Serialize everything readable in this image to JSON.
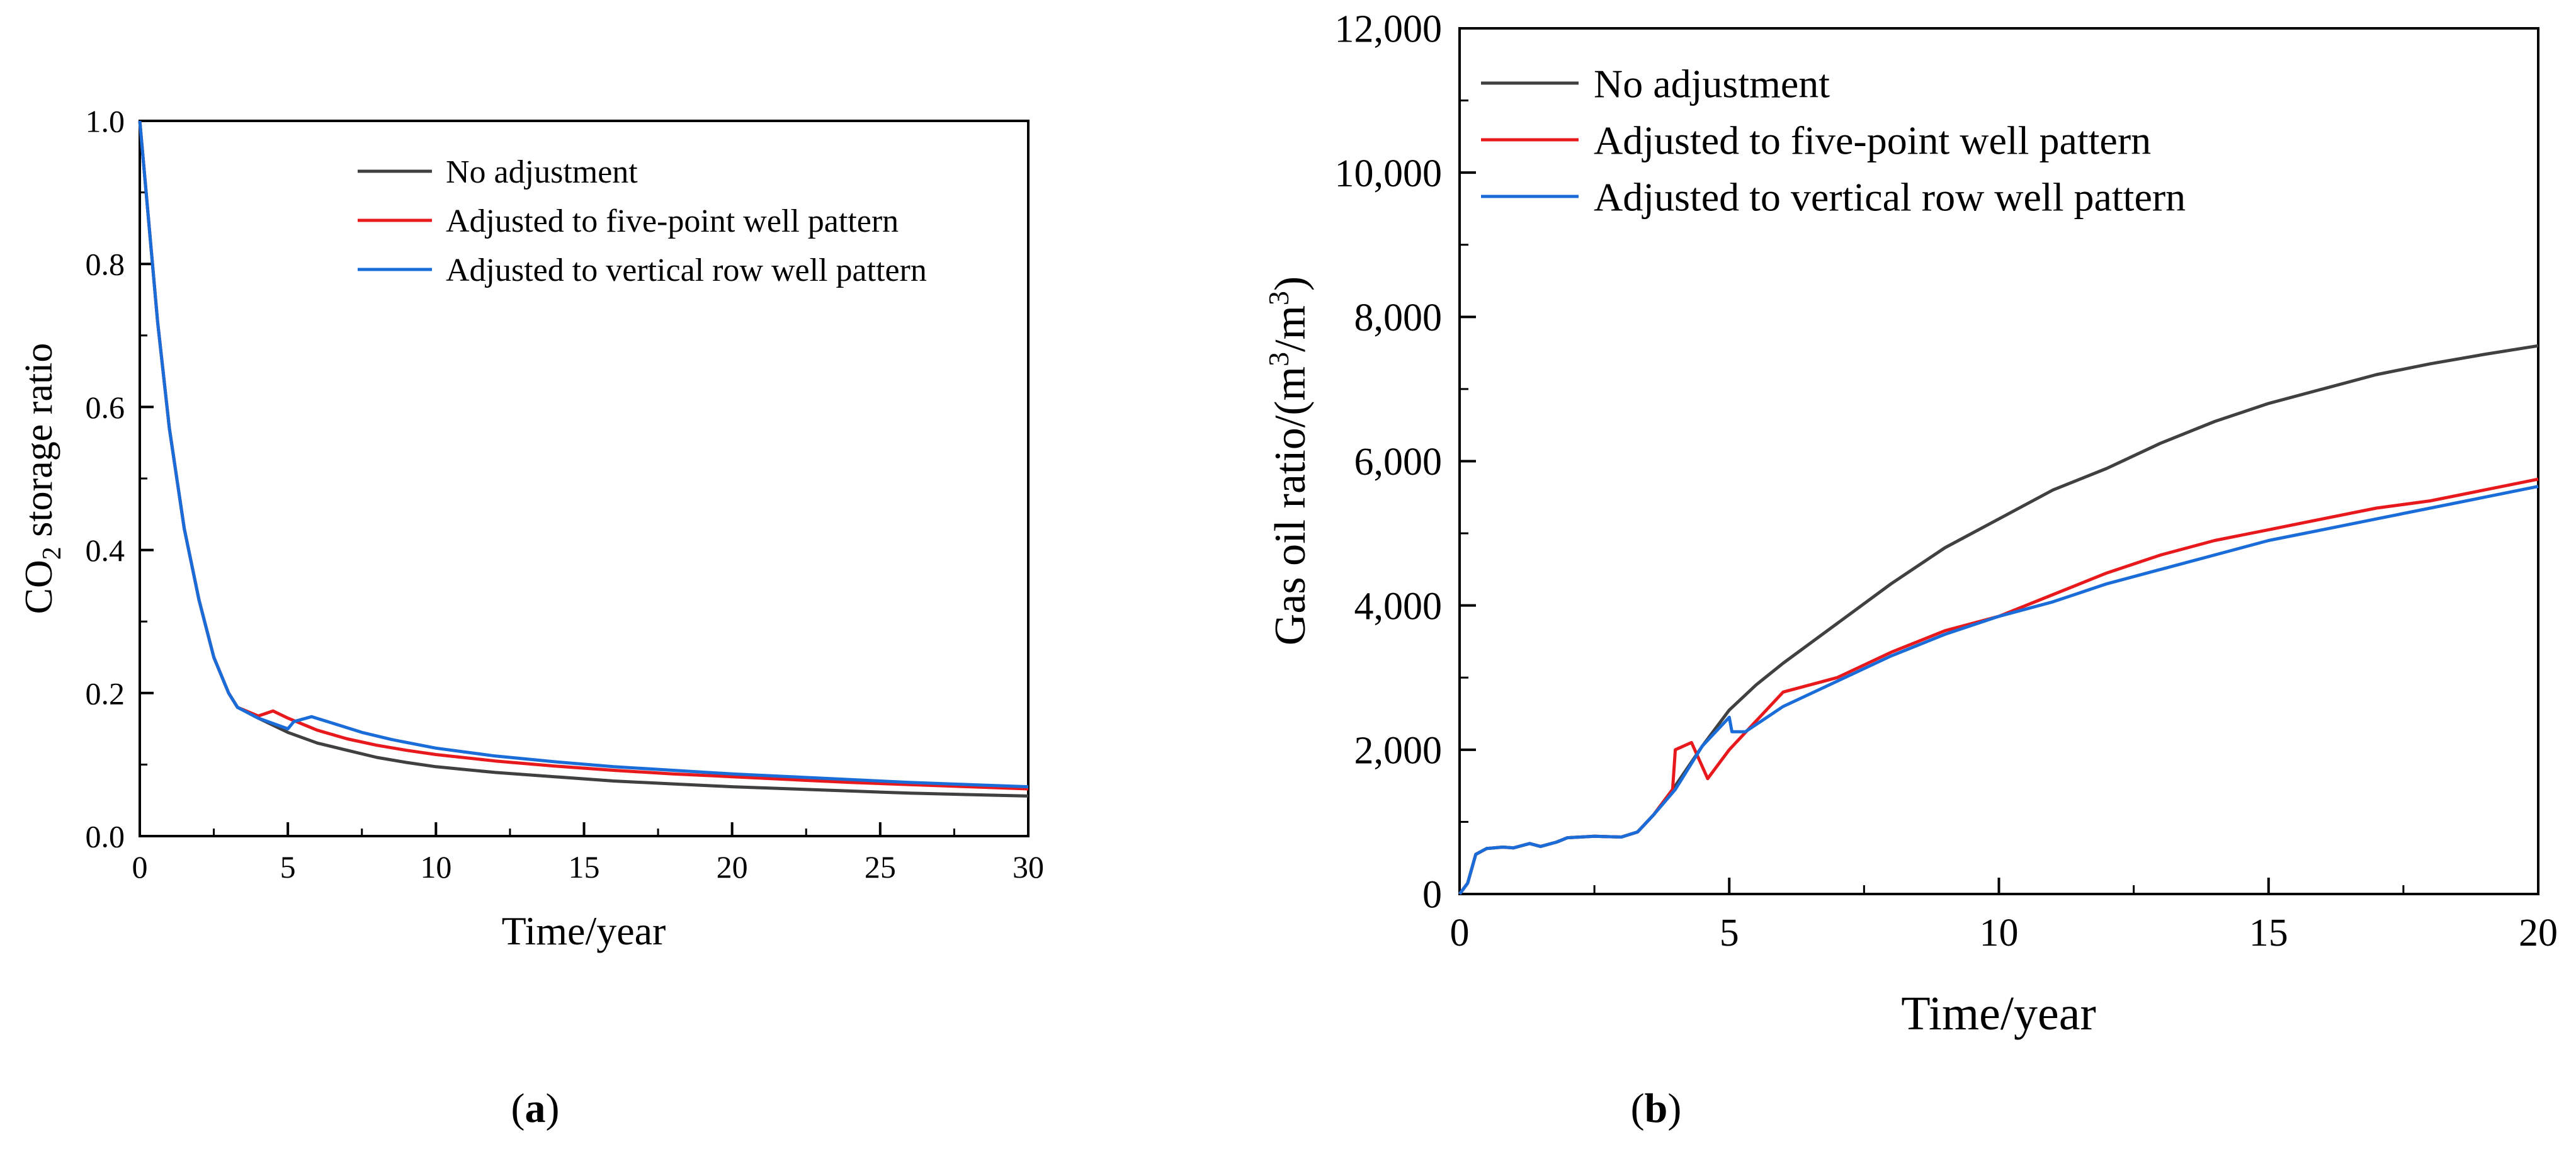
{
  "chart_data": [
    {
      "type": "line",
      "panel_label": "(a)",
      "panel_letter": "a",
      "xlabel": "Time/year",
      "ylabel_main": "CO",
      "ylabel_sub": "2",
      "ylabel_rest": " storage ratio",
      "xlim": [
        0,
        30
      ],
      "ylim": [
        0,
        1.0
      ],
      "xticks": [
        "0",
        "5",
        "10",
        "15",
        "20",
        "25",
        "30"
      ],
      "yticks": [
        "0.0",
        "0.2",
        "0.4",
        "0.6",
        "0.8",
        "1.0"
      ],
      "legend_position": "top-right",
      "series": [
        {
          "name": "No adjustment",
          "color": "#404040",
          "x": [
            0,
            0.3,
            0.6,
            1.0,
            1.5,
            2.0,
            2.5,
            3.0,
            3.3,
            4.0,
            5.0,
            6.0,
            7.0,
            8.0,
            9.0,
            10.0,
            11.0,
            12.0,
            14.0,
            16.0,
            18.0,
            20.0,
            22.0,
            24.0,
            26.0,
            28.0,
            30.0
          ],
          "y": [
            1.0,
            0.86,
            0.72,
            0.57,
            0.43,
            0.33,
            0.25,
            0.2,
            0.18,
            0.165,
            0.145,
            0.13,
            0.12,
            0.11,
            0.103,
            0.097,
            0.093,
            0.089,
            0.083,
            0.077,
            0.073,
            0.069,
            0.066,
            0.063,
            0.06,
            0.058,
            0.056
          ]
        },
        {
          "name": "Adjusted to five-point well pattern",
          "color": "#e8191c",
          "x": [
            0,
            0.3,
            0.6,
            1.0,
            1.5,
            2.0,
            2.5,
            3.0,
            3.3,
            4.0,
            4.5,
            5.0,
            6.0,
            7.0,
            8.0,
            9.0,
            10.0,
            12.0,
            14.0,
            16.0,
            18.0,
            20.0,
            22.0,
            24.0,
            26.0,
            28.0,
            30.0
          ],
          "y": [
            1.0,
            0.86,
            0.72,
            0.57,
            0.43,
            0.33,
            0.25,
            0.2,
            0.18,
            0.168,
            0.175,
            0.165,
            0.148,
            0.136,
            0.127,
            0.12,
            0.114,
            0.105,
            0.098,
            0.092,
            0.087,
            0.083,
            0.079,
            0.075,
            0.072,
            0.069,
            0.066
          ]
        },
        {
          "name": "Adjusted to vertical row well pattern",
          "color": "#1a6dd8",
          "x": [
            0,
            0.3,
            0.6,
            1.0,
            1.5,
            2.0,
            2.5,
            3.0,
            3.3,
            4.0,
            5.0,
            5.2,
            5.8,
            6.5,
            7.5,
            8.5,
            10.0,
            12.0,
            14.0,
            16.0,
            18.0,
            20.0,
            22.0,
            24.0,
            26.0,
            28.0,
            30.0
          ],
          "y": [
            1.0,
            0.86,
            0.72,
            0.57,
            0.43,
            0.33,
            0.25,
            0.2,
            0.18,
            0.165,
            0.15,
            0.16,
            0.167,
            0.158,
            0.145,
            0.135,
            0.123,
            0.112,
            0.104,
            0.097,
            0.092,
            0.087,
            0.083,
            0.079,
            0.075,
            0.072,
            0.069
          ]
        }
      ]
    },
    {
      "type": "line",
      "panel_label": "(b)",
      "panel_letter": "b",
      "xlabel": "Time/year",
      "ylabel_main": "Gas oil ratio/(m",
      "ylabel_sup1": "3",
      "ylabel_mid": "/m",
      "ylabel_sup2": "3",
      "ylabel_end": ")",
      "xlim": [
        0,
        20
      ],
      "ylim": [
        0,
        12000
      ],
      "xticks": [
        "0",
        "5",
        "10",
        "15",
        "20"
      ],
      "yticks": [
        "0",
        "2,000",
        "4,000",
        "6,000",
        "8,000",
        "10,000",
        "12,000"
      ],
      "legend_position": "top-left",
      "series": [
        {
          "name": "No adjustment",
          "color": "#404040",
          "x": [
            0,
            0.15,
            0.3,
            0.5,
            0.8,
            1.0,
            1.3,
            1.5,
            1.8,
            2.0,
            2.5,
            3.0,
            3.3,
            3.6,
            4.0,
            4.5,
            5.0,
            5.5,
            6.0,
            7.0,
            8.0,
            9.0,
            10.0,
            11.0,
            12.0,
            13.0,
            14.0,
            15.0,
            16.0,
            17.0,
            18.0,
            19.0,
            20.0
          ],
          "y": [
            0,
            150,
            550,
            630,
            650,
            640,
            700,
            660,
            720,
            780,
            800,
            790,
            860,
            1100,
            1500,
            2050,
            2550,
            2900,
            3200,
            3750,
            4300,
            4800,
            5200,
            5600,
            5900,
            6250,
            6550,
            6800,
            7000,
            7200,
            7350,
            7480,
            7600
          ]
        },
        {
          "name": "Adjusted to five-point well pattern",
          "color": "#e8191c",
          "x": [
            0,
            0.15,
            0.3,
            0.5,
            0.8,
            1.0,
            1.3,
            1.5,
            1.8,
            2.0,
            2.5,
            3.0,
            3.3,
            3.6,
            3.95,
            4.0,
            4.3,
            4.6,
            5.0,
            5.5,
            6.0,
            7.0,
            8.0,
            9.0,
            10.0,
            11.0,
            12.0,
            13.0,
            14.0,
            15.0,
            16.0,
            17.0,
            18.0,
            19.0,
            20.0
          ],
          "y": [
            0,
            150,
            550,
            630,
            650,
            640,
            700,
            660,
            720,
            780,
            800,
            790,
            860,
            1100,
            1450,
            2000,
            2100,
            1600,
            2000,
            2400,
            2800,
            3000,
            3350,
            3650,
            3850,
            4150,
            4450,
            4700,
            4900,
            5050,
            5200,
            5350,
            5450,
            5600,
            5750
          ]
        },
        {
          "name": "Adjusted to vertical row well pattern",
          "color": "#1a6dd8",
          "x": [
            0,
            0.15,
            0.3,
            0.5,
            0.8,
            1.0,
            1.3,
            1.5,
            1.8,
            2.0,
            2.5,
            3.0,
            3.3,
            3.6,
            4.0,
            4.5,
            5.0,
            5.05,
            5.3,
            5.7,
            6.0,
            7.0,
            8.0,
            9.0,
            10.0,
            11.0,
            12.0,
            13.0,
            14.0,
            15.0,
            16.0,
            17.0,
            18.0,
            19.0,
            20.0
          ],
          "y": [
            0,
            150,
            550,
            630,
            650,
            640,
            700,
            660,
            720,
            780,
            800,
            790,
            860,
            1100,
            1450,
            2050,
            2450,
            2250,
            2250,
            2450,
            2600,
            2950,
            3300,
            3600,
            3850,
            4050,
            4300,
            4500,
            4700,
            4900,
            5050,
            5200,
            5350,
            5500,
            5650
          ]
        }
      ]
    }
  ]
}
